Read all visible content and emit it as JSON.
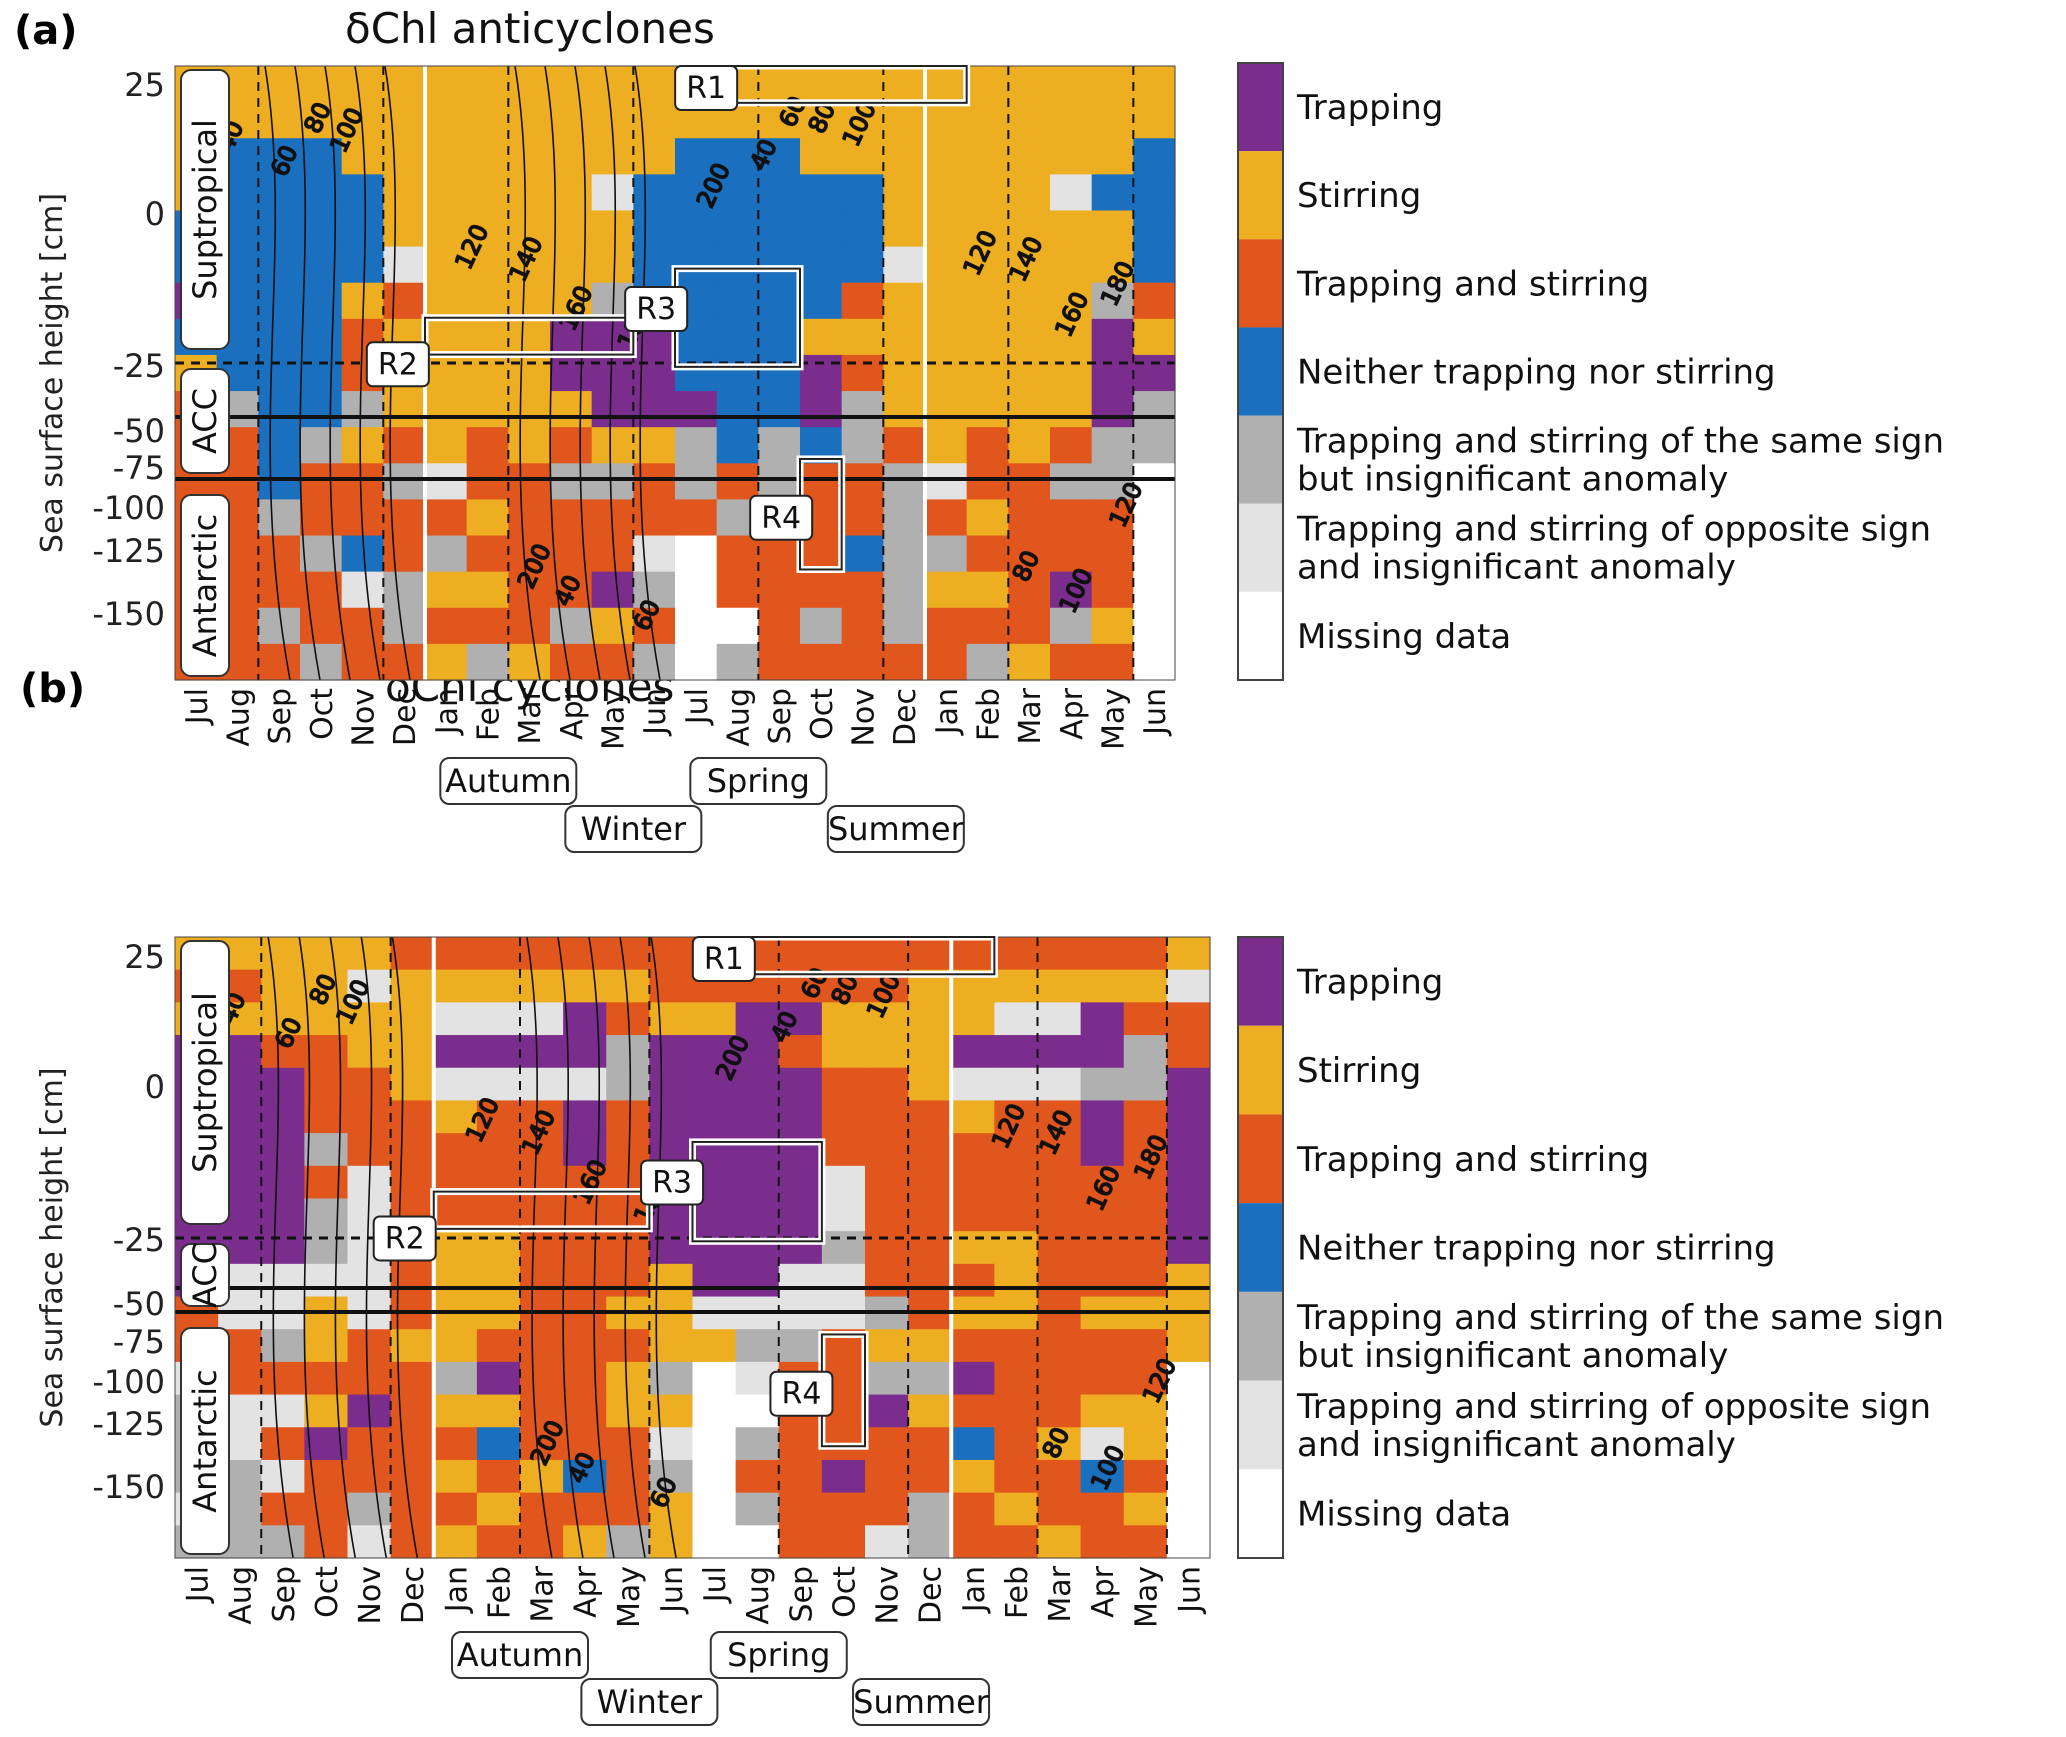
{
  "colors": {
    "Trapping": "#7b2d8e",
    "Stirring": "#eeae22",
    "Trapping and stirring": "#e0561c",
    "Neither trapping nor stirring": "#1a6fbf",
    "Same sign insignificant": "#b0b0b0",
    "Opposite sign insignificant": "#e3e3e3",
    "Missing data": "#ffffff"
  },
  "shared": {
    "ylabel": "Sea surface height [cm]",
    "y_ticks": [
      "25",
      "0",
      "-25",
      "-50",
      "-75",
      "-100",
      "-125",
      "-150"
    ],
    "months": [
      "Jul",
      "Aug",
      "Sep",
      "Oct",
      "Nov",
      "Dec",
      "Jan",
      "Feb",
      "Mar",
      "Apr",
      "May",
      "Jun",
      "Jul",
      "Aug",
      "Sep",
      "Oct",
      "Nov",
      "Dec",
      "Jan",
      "Feb",
      "Mar",
      "Apr",
      "May",
      "Jun"
    ],
    "zones": [
      "Suptropical",
      "ACC",
      "Antarctic"
    ],
    "seasons": [
      "Autumn",
      "Spring",
      "Winter",
      "Summer"
    ],
    "regions": [
      "R1",
      "R2",
      "R3",
      "R4"
    ],
    "contour_labels": [
      "40",
      "60",
      "80",
      "100",
      "120",
      "140",
      "160",
      "180",
      "200"
    ],
    "legend": [
      {
        "label": "Trapping",
        "color": "#7b2d8e"
      },
      {
        "label": "Stirring",
        "color": "#eeae22"
      },
      {
        "label": "Trapping and stirring",
        "color": "#e0561c"
      },
      {
        "label": "Neither trapping nor stirring",
        "color": "#1a6fbf"
      },
      {
        "label": "Trapping and stirring of the same sign",
        "label2": "but insignificant anomaly",
        "color": "#b0b0b0"
      },
      {
        "label": "Trapping and stirring of opposite sign",
        "label2": "and insignificant anomaly",
        "color": "#e3e3e3"
      },
      {
        "label": "Missing data",
        "color": "#ffffff"
      }
    ]
  },
  "chart_data": [
    {
      "tag": "(a)",
      "title": "δChl anticyclones",
      "type": "heatmap",
      "key": "T=Trapping S=Stirring B=Trapping and stirring N=Neither G=same sign insignificant L=opposite sign insignificant W=missing; columns Jul..Jun x2; rows top to bottom",
      "grid": [
        "SSSSSSSSSSSSSSSSSSSSSSSS",
        "SSSSSSSSSSSSSSSSSSSSSSSS",
        "SNNNSSSSSSSSNNNSSSSSSSSN",
        "SNNNNSSSSSLNNNNNNSSSSLNN",
        "NNNNNSSSSSSNNNNNNSSSSSSN",
        "NNNNNLSSSSSNNNNNNLSSSSSN",
        "TNNNSBSSSSGNNNNNBSSSSSGB",
        "NNNNBSSSSTTTNNNSSSSSSSTS",
        "SNNNBSSSSTTTNNNTBSSSSSTT",
        "BGNNGSSSSSTTTNNTGSSSSSTG",
        "BBNGSBSBSBSSGNGNGBSBSBGG",
        "BBNBBGLBBGGBGBGBBGLBBGGW",
        "BBGBBBBSBBBBBGBBBGBSBBBW",
        "BBBGNBGBBBBLWBBBNGGBBBBW",
        "BBBBLGSSBBTGWBBBBGSSBTBW",
        "BBGBBGBBBGSBWWBGBGBBBGSW",
        "BBBGBBSGSBBGWGBBBBBGSBBW"
      ]
    },
    {
      "tag": "(b)",
      "title": "δChl cyclones",
      "type": "heatmap",
      "key": "T=Trapping S=Stirring B=Trapping and stirring N=Neither G=same sign insignificant L=opposite sign insignificant W=missing; columns Jul..Jun x2; rows top to bottom",
      "grid": [
        "SSSSSBBBBBBBBBBBBBBBBBBS",
        "BBSSLSSSSSSBBBBBBSSSSSSL",
        "SSSSSSLLLTBSSTTSSSSLLTBB",
        "TTBBSSTTTTGTTTBSSSTTTTGB",
        "TTTBBSLLLLGTTTTBBSLLLGGT",
        "TTTBBBSBBTBTTTTBBBSBBTBT",
        "TTTGBBBBBTBTTTTBBBBBBTBT",
        "TTTBLBBBBBBTTTTLBBBBBBBT",
        "TTTGLBBBBBBTTTTLBBBBBBBT",
        "TTTGLBSSBBBTTTTGBBSSBBBT",
        "TLLLLBSSBBBSTTLLBBBSBBBS",
        "BLLSLBSSBBSSLLLLGBSSBSSS",
        "BBGSBSSBBBBSSGGBSSBBBBBS",
        "LBBBBBGTBBSGWLBBGGTBBBBW",
        "GLLSTBSSBBSSWWBBTSBBBSSW",
        "GLBTBBBNBBBLWGBBBBNBSLSW",
        "GGLBBBSBSNBGWBBTBBSBBNBW",
        "LGBBGBBSBBBSWGBBBGBSBBSW",
        "GGGBLBSBBSGSWWBBLGBBSBBW"
      ]
    }
  ]
}
